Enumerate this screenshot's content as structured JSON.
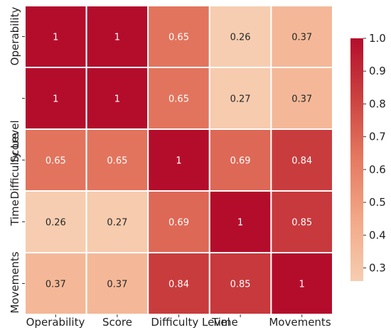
{
  "chart_data": {
    "type": "heatmap",
    "title": "",
    "x_labels": [
      "Operability",
      "Score",
      "Difficulty Level",
      "Time",
      "Movements"
    ],
    "y_labels": [
      "Operability",
      "Score",
      "Difficulty Level",
      "Time",
      "Movements"
    ],
    "values": [
      [
        1,
        1,
        0.65,
        0.26,
        0.37
      ],
      [
        1,
        1,
        0.65,
        0.27,
        0.37
      ],
      [
        0.65,
        0.65,
        1,
        0.69,
        0.84
      ],
      [
        0.26,
        0.27,
        0.69,
        1,
        0.85
      ],
      [
        0.37,
        0.37,
        0.84,
        0.85,
        1
      ]
    ],
    "cell_labels": [
      [
        "1",
        "1",
        "0.65",
        "0.26",
        "0.37"
      ],
      [
        "1",
        "1",
        "0.65",
        "0.27",
        "0.37"
      ],
      [
        "0.65",
        "0.65",
        "1",
        "0.69",
        "0.84"
      ],
      [
        "0.26",
        "0.27",
        "0.69",
        "1",
        "0.85"
      ],
      [
        "0.37",
        "0.37",
        "0.84",
        "0.85",
        "1"
      ]
    ],
    "colorbar": {
      "range": [
        0.26,
        1.0
      ],
      "ticks": [
        "0.3",
        "0.4",
        "0.5",
        "0.6",
        "0.7",
        "0.8",
        "0.9",
        "1.0"
      ],
      "placement": "right",
      "colormap": "light peach to dark red"
    },
    "colors": {
      "low": "#f6cdb0",
      "high": "#b40d2c",
      "grid": "#ffffff",
      "dark_text": "#262626",
      "light_text": "#ffffff"
    }
  }
}
